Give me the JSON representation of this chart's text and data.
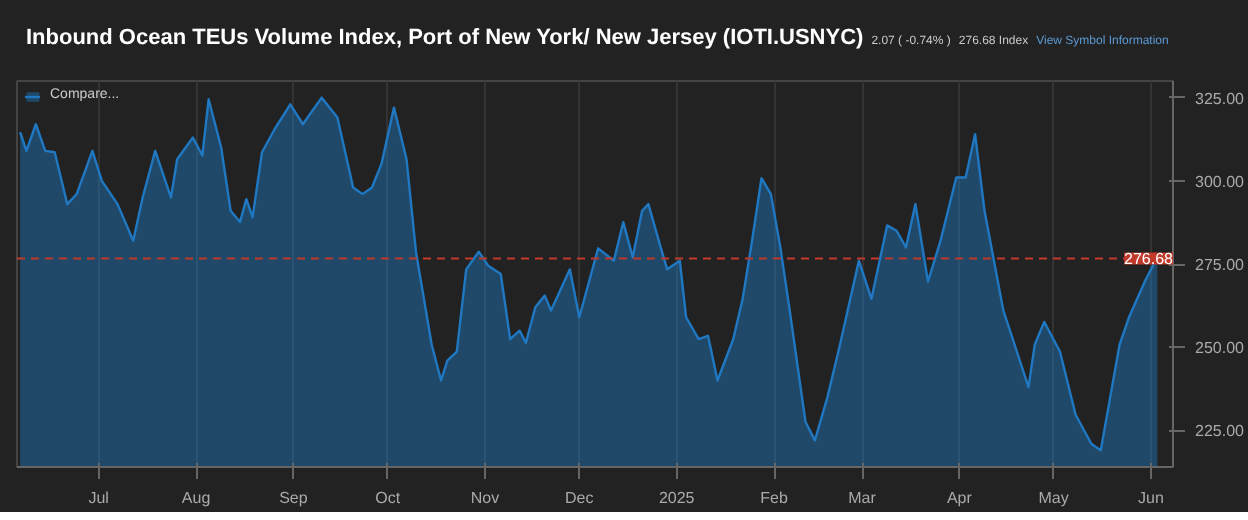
{
  "chart_data": {
    "type": "area",
    "title": "Inbound Ocean TEUs Volume Index, Port of New York/ New Jersey (IOTI.USNYC)",
    "annotations": [
      "2.07 ( -0.74% )",
      "276.68 Index",
      "View Symbol Information"
    ],
    "x": [
      "2024-06-06",
      "2024-06-08",
      "2024-06-11",
      "2024-06-14",
      "2024-06-17",
      "2024-06-21",
      "2024-06-24",
      "2024-06-29",
      "2024-07-02",
      "2024-07-07",
      "2024-07-12",
      "2024-07-15",
      "2024-07-19",
      "2024-07-24",
      "2024-07-26",
      "2024-07-31",
      "2024-08-03",
      "2024-08-05",
      "2024-08-09",
      "2024-08-12",
      "2024-08-15",
      "2024-08-17",
      "2024-08-19",
      "2024-08-22",
      "2024-08-26",
      "2024-08-31",
      "2024-09-04",
      "2024-09-10",
      "2024-09-15",
      "2024-09-20",
      "2024-09-23",
      "2024-09-26",
      "2024-09-29",
      "2024-10-03",
      "2024-10-07",
      "2024-10-10",
      "2024-10-15",
      "2024-10-18",
      "2024-10-20",
      "2024-10-23",
      "2024-10-26",
      "2024-10-30",
      "2024-11-02",
      "2024-11-06",
      "2024-11-09",
      "2024-11-12",
      "2024-11-14",
      "2024-11-17",
      "2024-11-20",
      "2024-11-22",
      "2024-11-28",
      "2024-12-01",
      "2024-12-07",
      "2024-12-12",
      "2024-12-15",
      "2024-12-18",
      "2024-12-21",
      "2024-12-23",
      "2024-12-27",
      "2024-12-29",
      "2025-01-02",
      "2025-01-04",
      "2025-01-08",
      "2025-01-11",
      "2025-01-14",
      "2025-01-19",
      "2025-01-22",
      "2025-01-25",
      "2025-01-28",
      "2025-01-31",
      "2025-02-03",
      "2025-02-06",
      "2025-02-11",
      "2025-02-14",
      "2025-02-18",
      "2025-02-22",
      "2025-02-28",
      "2025-03-04",
      "2025-03-09",
      "2025-03-12",
      "2025-03-15",
      "2025-03-18",
      "2025-03-22",
      "2025-03-26",
      "2025-03-31",
      "2025-04-03",
      "2025-04-06",
      "2025-04-09",
      "2025-04-15",
      "2025-04-18",
      "2025-04-23",
      "2025-04-25",
      "2025-04-28",
      "2025-05-03",
      "2025-05-08",
      "2025-05-13",
      "2025-05-16",
      "2025-05-22",
      "2025-05-25",
      "2025-05-30",
      "2025-06-03"
    ],
    "series": [
      {
        "name": "Compare...",
        "color": "#1f78c1",
        "values": [
          314.6,
          309,
          317,
          309,
          308.6,
          293,
          296,
          309,
          300,
          293,
          282,
          295,
          309,
          295,
          306.5,
          313,
          307.6,
          324.5,
          310,
          291,
          287.6,
          294.5,
          289,
          308.6,
          315.5,
          323,
          317,
          325,
          319,
          298,
          296,
          298,
          305,
          322,
          306.5,
          278.7,
          250.8,
          240,
          246,
          248.7,
          273.4,
          278.7,
          274.5,
          272,
          252.4,
          255,
          251.3,
          262,
          265.5,
          261,
          273.4,
          259,
          279.7,
          276,
          287.6,
          277,
          291,
          293,
          279.7,
          273.4,
          276,
          259,
          252.4,
          253.4,
          240,
          252.4,
          264.5,
          282,
          300.8,
          296,
          280,
          261,
          227.6,
          222,
          235,
          250.8,
          276,
          264.5,
          286.6,
          285,
          280,
          293,
          269.7,
          282,
          301,
          301,
          314,
          291,
          261,
          252.4,
          238,
          250.8,
          257.6,
          248.7,
          229.7,
          221,
          219,
          250.8,
          259,
          269.7,
          277.1
        ]
      }
    ],
    "xlim": [
      "2024-06-05",
      "2025-06-08"
    ],
    "xticks": [
      {
        "value": "2024-07-01",
        "label": "Jul"
      },
      {
        "value": "2024-08-01",
        "label": "Aug"
      },
      {
        "value": "2024-09-01",
        "label": "Sep"
      },
      {
        "value": "2024-10-01",
        "label": "Oct"
      },
      {
        "value": "2024-11-01",
        "label": "Nov"
      },
      {
        "value": "2024-12-01",
        "label": "Dec"
      },
      {
        "value": "2025-01-01",
        "label": "2025"
      },
      {
        "value": "2025-02-01",
        "label": "Feb"
      },
      {
        "value": "2025-03-01",
        "label": "Mar"
      },
      {
        "value": "2025-04-01",
        "label": "Apr"
      },
      {
        "value": "2025-05-01",
        "label": "May"
      },
      {
        "value": "2025-06-01",
        "label": "Jun"
      }
    ],
    "ylim": [
      214,
      330
    ],
    "yticks": [
      {
        "value": 225,
        "label": "225.00"
      },
      {
        "value": 250,
        "label": "250.00"
      },
      {
        "value": 275,
        "label": "275.00"
      },
      {
        "value": 300,
        "label": "300.00"
      },
      {
        "value": 325,
        "label": "325.00"
      }
    ],
    "ref_lines": [
      {
        "axis": "y",
        "value": 276.68,
        "label": "276.68",
        "color": "#c0392b",
        "line_style": "dashed"
      }
    ],
    "grid": "x",
    "legend": "top left"
  }
}
